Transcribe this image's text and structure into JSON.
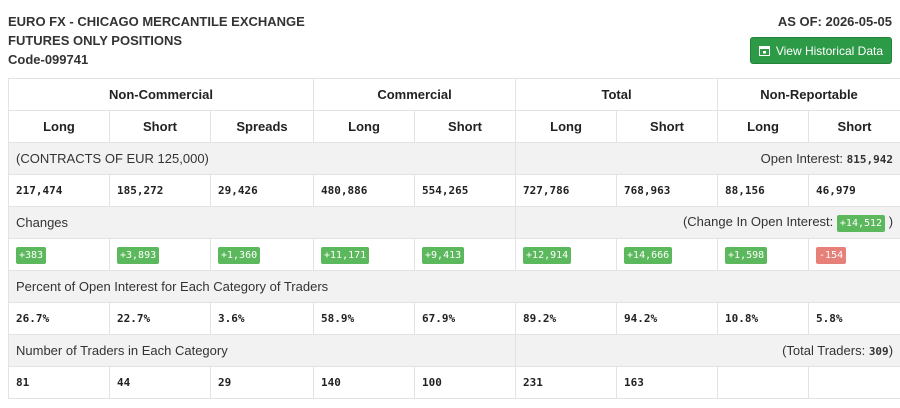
{
  "header": {
    "line1": "EURO FX - CHICAGO MERCANTILE EXCHANGE",
    "line2": "FUTURES ONLY POSITIONS",
    "code": "Code-099741",
    "as_of": "AS OF: 2026-05-05",
    "view_button": "View Historical Data"
  },
  "table": {
    "groups": [
      "Non-Commercial",
      "Commercial",
      "Total",
      "Non-Reportable"
    ],
    "columns": [
      "Long",
      "Short",
      "Spreads",
      "Long",
      "Short",
      "Long",
      "Short",
      "Long",
      "Short"
    ],
    "contracts_label": "(CONTRACTS OF EUR 125,000)",
    "open_interest_label": "Open Interest:",
    "open_interest_value": "815,942",
    "positions": [
      "217,474",
      "185,272",
      "29,426",
      "480,886",
      "554,265",
      "727,786",
      "768,963",
      "88,156",
      "46,979"
    ],
    "changes_label": "Changes",
    "change_oi_label": "(Change In Open Interest:",
    "change_oi_value": "+14,512",
    "change_oi_close": ")",
    "changes": [
      "+383",
      "+3,893",
      "+1,360",
      "+11,171",
      "+9,413",
      "+12,914",
      "+14,666",
      "+1,598",
      "-154"
    ],
    "percent_label": "Percent of Open Interest for Each Category of Traders",
    "percents": [
      "26.7%",
      "22.7%",
      "3.6%",
      "58.9%",
      "67.9%",
      "89.2%",
      "94.2%",
      "10.8%",
      "5.8%"
    ],
    "traders_label": "Number of Traders in Each Category",
    "total_traders_label": "(Total Traders:",
    "total_traders_value": "309",
    "total_traders_close": ")",
    "traders": [
      "81",
      "44",
      "29",
      "140",
      "100",
      "231",
      "163",
      "",
      ""
    ]
  },
  "colors": {
    "positive": "#5cb85c",
    "negative": "#e8807a",
    "button": "#2d9a47"
  }
}
